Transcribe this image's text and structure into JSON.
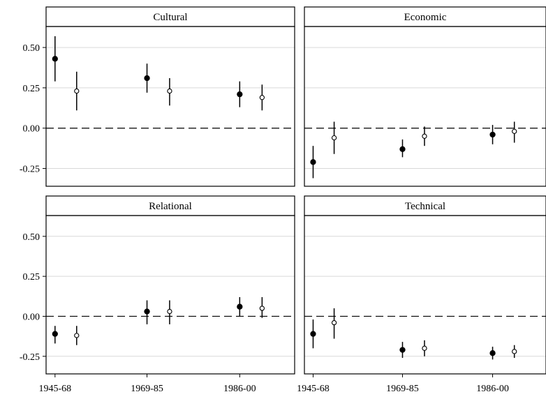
{
  "chart_data": {
    "type": "scatter",
    "subtype": "faceted point-range (coefficient plot)",
    "layout": "2x2 facets, shared axes",
    "x": [
      "1945-68",
      "1969-85",
      "1986-00"
    ],
    "ylim": [
      -0.36,
      0.63
    ],
    "yticks": [
      -0.25,
      0.0,
      0.25,
      0.5
    ],
    "ytick_labels": [
      "-0.25",
      "0.00",
      "0.25",
      "0.50"
    ],
    "reference_line": {
      "y": 0,
      "style": "dashed"
    },
    "grid": "horizontal major gridlines",
    "series_styles": [
      "filled-circle",
      "open-circle"
    ],
    "panels": [
      {
        "title": "Cultural",
        "series": [
          {
            "marker": "filled",
            "values": [
              0.43,
              0.31,
              0.21
            ],
            "lower": [
              0.29,
              0.22,
              0.13
            ],
            "upper": [
              0.57,
              0.4,
              0.29
            ]
          },
          {
            "marker": "open",
            "values": [
              0.23,
              0.23,
              0.19
            ],
            "lower": [
              0.11,
              0.14,
              0.11
            ],
            "upper": [
              0.35,
              0.31,
              0.27
            ]
          }
        ]
      },
      {
        "title": "Economic",
        "series": [
          {
            "marker": "filled",
            "values": [
              -0.21,
              -0.13,
              -0.04
            ],
            "lower": [
              -0.31,
              -0.18,
              -0.1
            ],
            "upper": [
              -0.11,
              -0.07,
              0.02
            ]
          },
          {
            "marker": "open",
            "values": [
              -0.06,
              -0.05,
              -0.02
            ],
            "lower": [
              -0.16,
              -0.11,
              -0.09
            ],
            "upper": [
              0.04,
              0.01,
              0.04
            ]
          }
        ]
      },
      {
        "title": "Relational",
        "series": [
          {
            "marker": "filled",
            "values": [
              -0.11,
              0.03,
              0.06
            ],
            "lower": [
              -0.17,
              -0.05,
              0.0
            ],
            "upper": [
              -0.06,
              0.1,
              0.12
            ]
          },
          {
            "marker": "open",
            "values": [
              -0.12,
              0.03,
              0.05
            ],
            "lower": [
              -0.18,
              -0.05,
              -0.01
            ],
            "upper": [
              -0.06,
              0.1,
              0.12
            ]
          }
        ]
      },
      {
        "title": "Technical",
        "series": [
          {
            "marker": "filled",
            "values": [
              -0.11,
              -0.21,
              -0.23
            ],
            "lower": [
              -0.2,
              -0.26,
              -0.27
            ],
            "upper": [
              -0.02,
              -0.16,
              -0.19
            ]
          },
          {
            "marker": "open",
            "values": [
              -0.04,
              -0.2,
              -0.22
            ],
            "lower": [
              -0.14,
              -0.25,
              -0.26
            ],
            "upper": [
              0.05,
              -0.15,
              -0.18
            ]
          }
        ]
      }
    ]
  },
  "colors": {
    "marker": "#000000",
    "gridline": "#d9d9d9",
    "frame": "#000000",
    "strip_background": "#ffffff"
  }
}
